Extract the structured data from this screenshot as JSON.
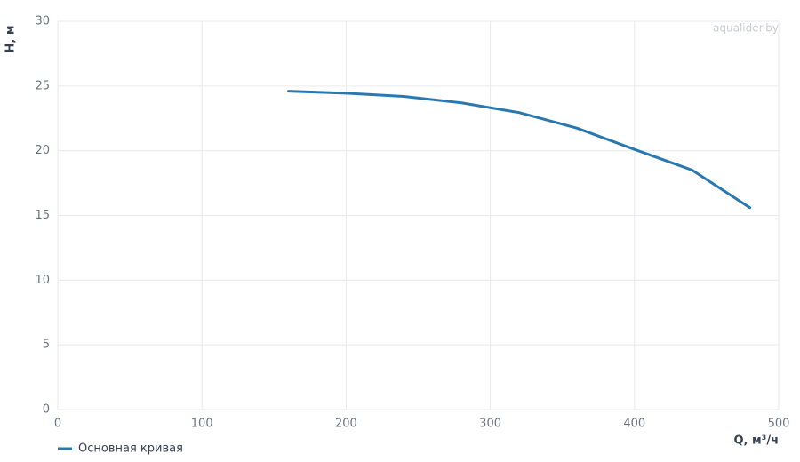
{
  "chart_data": {
    "type": "line",
    "watermark": "aqualider.by",
    "x_label": "Q, м³/ч",
    "y_label": "H, м",
    "x": [
      160,
      200,
      240,
      280,
      320,
      360,
      400,
      440,
      480
    ],
    "series": [
      {
        "name": "Основная кривая",
        "color": "#2a78b0",
        "values": [
          24.6,
          24.45,
          24.2,
          23.7,
          22.95,
          21.75,
          20.1,
          18.5,
          15.6
        ]
      }
    ],
    "xlim": [
      0,
      500
    ],
    "xticks": [
      0,
      100,
      200,
      300,
      400,
      500
    ],
    "ylim": [
      0,
      30
    ],
    "yticks": [
      0,
      5,
      10,
      15,
      20,
      25,
      30
    ],
    "grid": true
  }
}
